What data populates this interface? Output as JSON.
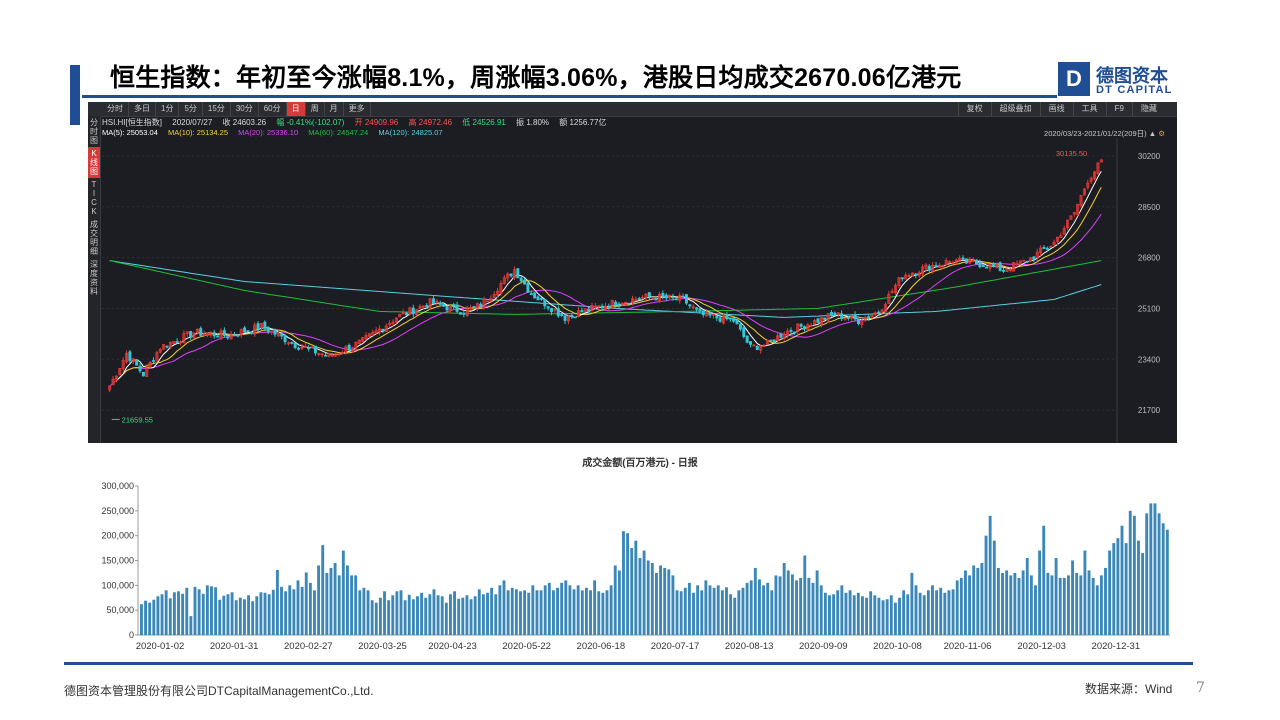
{
  "header": {
    "title": "恒生指数：年初至今涨幅8.1%，周涨幅3.06%，港股日均成交2670.06亿港元",
    "logo_letter": "D",
    "logo_cn": "德图资本",
    "logo_en": "DT CAPITAL",
    "accent_color": "#1f4e95"
  },
  "terminal": {
    "toolbar_left": [
      "分时",
      "多日",
      "1分",
      "5分",
      "15分",
      "30分",
      "60分",
      "日",
      "周",
      "月",
      "更多"
    ],
    "toolbar_active": "日",
    "toolbar_right": [
      "复权",
      "超级叠加",
      "画线",
      "工具",
      "F9",
      "隐藏"
    ],
    "sidebar": [
      "分时图",
      "K线图",
      "TICK",
      "成交明细",
      "深度资料"
    ],
    "sidebar_active": "K线图",
    "info": {
      "symbol": "HSI.HI[恒生指数]",
      "date": "2020/07/27",
      "close": "收 24603.26",
      "change": "幅 -0.41%(-102.07)",
      "open": "开 24909.96",
      "high": "高 24972.46",
      "low": "低 24526.91",
      "amplitude": "振 1.80%",
      "amount": "额 1256.77亿"
    },
    "ma": {
      "ma5": "MA(5): 25053.04",
      "ma10": "MA(10): 25134.25",
      "ma20": "MA(20): 25336.10",
      "ma60": "MA(60): 24547.24",
      "ma120": "MA(120): 24825.07"
    },
    "date_range": "2020/03/23-2021/01/22(209日)",
    "high_label": "30135.50",
    "low_label": "21659.55"
  },
  "chart_data": [
    {
      "type": "candlestick",
      "title": "HSI.HI[恒生指数]",
      "ylim": [
        20600,
        30800
      ],
      "y_ticks": [
        30200,
        28500,
        26800,
        25100,
        23400,
        21700
      ],
      "max_label": 30135.5,
      "min_label": 21659.55,
      "colors": {
        "up": "#e53935",
        "down": "#34c6d6",
        "ma5": "#ffffff",
        "ma10": "#f6d232",
        "ma20": "#e040fb",
        "ma60": "#1fbf3a",
        "ma120": "#5ad0e6"
      },
      "close_anchors": [
        [
          0,
          22500
        ],
        [
          5,
          23600
        ],
        [
          10,
          22900
        ],
        [
          15,
          23800
        ],
        [
          25,
          24300
        ],
        [
          35,
          24200
        ],
        [
          45,
          24500
        ],
        [
          55,
          23900
        ],
        [
          65,
          23500
        ],
        [
          75,
          24000
        ],
        [
          85,
          24800
        ],
        [
          95,
          25300
        ],
        [
          105,
          25000
        ],
        [
          110,
          25200
        ],
        [
          120,
          26400
        ],
        [
          125,
          25600
        ],
        [
          130,
          25200
        ],
        [
          135,
          24800
        ],
        [
          140,
          25000
        ],
        [
          150,
          25300
        ],
        [
          160,
          25500
        ],
        [
          170,
          25400
        ],
        [
          175,
          24900
        ],
        [
          185,
          24700
        ],
        [
          190,
          23800
        ],
        [
          195,
          23900
        ],
        [
          200,
          24300
        ],
        [
          205,
          24500
        ],
        [
          215,
          24900
        ],
        [
          222,
          24700
        ],
        [
          228,
          25000
        ],
        [
          235,
          26200
        ],
        [
          243,
          26500
        ],
        [
          250,
          26700
        ],
        [
          258,
          26600
        ],
        [
          265,
          26400
        ],
        [
          272,
          26700
        ],
        [
          280,
          27300
        ],
        [
          286,
          28300
        ],
        [
          290,
          29400
        ],
        [
          294,
          30000
        ]
      ],
      "ma120_anchors": [
        [
          0,
          26700
        ],
        [
          40,
          26000
        ],
        [
          100,
          25500
        ],
        [
          150,
          25100
        ],
        [
          200,
          24800
        ],
        [
          245,
          25000
        ],
        [
          280,
          25400
        ],
        [
          294,
          25900
        ]
      ],
      "ma60_anchors": [
        [
          0,
          26700
        ],
        [
          40,
          25700
        ],
        [
          80,
          25000
        ],
        [
          120,
          24900
        ],
        [
          170,
          25000
        ],
        [
          210,
          25100
        ],
        [
          250,
          25800
        ],
        [
          294,
          26700
        ]
      ]
    },
    {
      "type": "bar",
      "title": "成交金额(百万港元) - 日报",
      "ylim": [
        0,
        300000
      ],
      "y_ticks": [
        0,
        50000,
        100000,
        150000,
        200000,
        250000,
        300000
      ],
      "x_tick_labels": [
        "2020-01-02",
        "2020-01-31",
        "2020-02-27",
        "2020-03-25",
        "2020-04-23",
        "2020-05-22",
        "2020-06-18",
        "2020-07-17",
        "2020-08-13",
        "2020-09-09",
        "2020-10-08",
        "2020-11-06",
        "2020-12-03",
        "2020-12-31"
      ],
      "bar_color": "#3a87b8",
      "values": [
        62000,
        69000,
        65000,
        71000,
        78000,
        82000,
        90000,
        74000,
        86000,
        88000,
        83000,
        95000,
        38000,
        97000,
        92000,
        83000,
        100000,
        98000,
        96000,
        71000,
        79000,
        82000,
        86000,
        70000,
        75000,
        72000,
        80000,
        68000,
        78000,
        86000,
        85000,
        82000,
        91000,
        131000,
        97000,
        88000,
        100000,
        92000,
        110000,
        97000,
        126000,
        105000,
        90000,
        140000,
        181000,
        125000,
        135000,
        145000,
        120000,
        170000,
        140000,
        120000,
        120000,
        90000,
        95000,
        90000,
        70000,
        65000,
        75000,
        88000,
        70000,
        80000,
        88000,
        90000,
        70000,
        81000,
        72000,
        78000,
        85000,
        75000,
        82000,
        92000,
        80000,
        78000,
        65000,
        82000,
        88000,
        73000,
        75000,
        80000,
        72000,
        78000,
        92000,
        82000,
        85000,
        95000,
        82000,
        100000,
        110000,
        90000,
        95000,
        92000,
        88000,
        90000,
        85000,
        100000,
        90000,
        90000,
        100000,
        105000,
        90000,
        95000,
        105000,
        110000,
        100000,
        92000,
        100000,
        90000,
        95000,
        90000,
        110000,
        88000,
        85000,
        90000,
        100000,
        140000,
        130000,
        209000,
        205000,
        175000,
        190000,
        155000,
        170000,
        150000,
        145000,
        125000,
        140000,
        135000,
        132000,
        120000,
        90000,
        88000,
        95000,
        105000,
        85000,
        100000,
        90000,
        110000,
        100000,
        95000,
        100000,
        90000,
        96000,
        82000,
        75000,
        90000,
        95000,
        105000,
        110000,
        135000,
        112000,
        100000,
        105000,
        90000,
        120000,
        118000,
        145000,
        130000,
        122000,
        110000,
        115000,
        160000,
        115000,
        105000,
        130000,
        100000,
        85000,
        80000,
        82000,
        90000,
        100000,
        85000,
        90000,
        80000,
        85000,
        78000,
        75000,
        88000,
        80000,
        75000,
        70000,
        72000,
        80000,
        65000,
        75000,
        90000,
        82000,
        125000,
        100000,
        85000,
        80000,
        90000,
        100000,
        90000,
        95000,
        85000,
        90000,
        92000,
        110000,
        115000,
        130000,
        120000,
        140000,
        135000,
        145000,
        200000,
        240000,
        190000,
        135000,
        125000,
        130000,
        120000,
        125000,
        115000,
        130000,
        155000,
        120000,
        100000,
        170000,
        220000,
        125000,
        120000,
        155000,
        115000,
        115000,
        120000,
        150000,
        125000,
        120000,
        170000,
        130000,
        115000,
        100000,
        120000,
        135000,
        170000,
        185000,
        195000,
        220000,
        185000,
        250000,
        240000,
        190000,
        165000,
        245000,
        265000,
        265000,
        245000,
        225000,
        212000
      ]
    }
  ],
  "footer": {
    "company": "德图资本管理股份有限公司DTCapitalManagementCo.,Ltd.",
    "source": "数据来源：Wind",
    "page": "7"
  }
}
